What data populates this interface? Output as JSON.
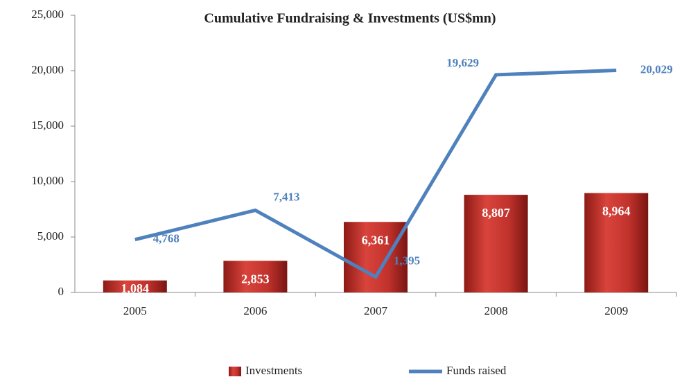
{
  "chart_data": {
    "type": "bar",
    "title": "Cumulative Fundraising & Investments (US$mn)",
    "categories": [
      "2005",
      "2006",
      "2007",
      "2008",
      "2009"
    ],
    "series": [
      {
        "name": "Investments",
        "type": "bar",
        "color": "#c0322c",
        "values": [
          1084,
          2853,
          6361,
          8807,
          8964
        ],
        "value_labels": [
          "1,084",
          "2,853",
          "6,361",
          "8,807",
          "8,964"
        ]
      },
      {
        "name": "Funds raised",
        "type": "line",
        "color": "#4f81bd",
        "values": [
          4768,
          7413,
          1395,
          19629,
          20029
        ],
        "value_labels": [
          "4,768",
          "7,413",
          "1,395",
          "19,629",
          "20,029"
        ]
      }
    ],
    "ylim": [
      0,
      25000
    ],
    "yticks": [
      0,
      {
        "value": 5000,
        "label": "5,000"
      },
      {
        "value": 10000,
        "label": "10,000"
      },
      {
        "value": 15000,
        "label": "15,000"
      },
      {
        "value": 20000,
        "label": "20,000"
      },
      {
        "value": 25000,
        "label": "25,000"
      }
    ],
    "legend": "bottom"
  }
}
